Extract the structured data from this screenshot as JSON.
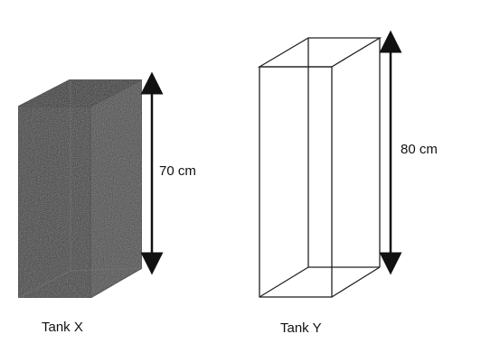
{
  "tanks": [
    {
      "name": "Tank X",
      "height_label": "70 cm",
      "height_cm": 70,
      "filled": true
    },
    {
      "name": "Tank Y",
      "height_label": "80 cm",
      "height_cm": 80,
      "filled": false
    }
  ],
  "colors": {
    "stroke": "#222222",
    "fill_dark": "#3a3a3a",
    "fill_light": "#5a5a5a"
  }
}
